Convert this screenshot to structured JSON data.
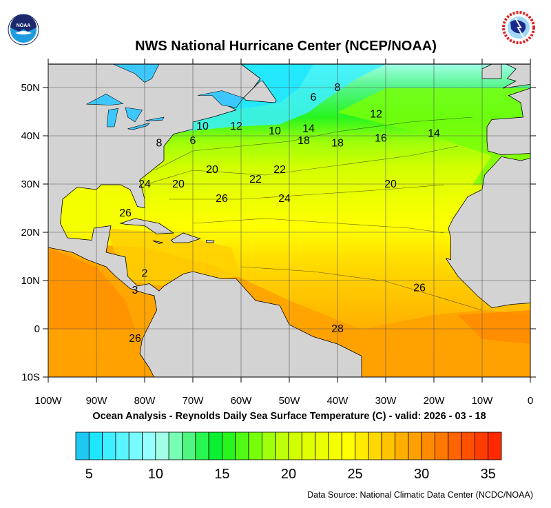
{
  "header": {
    "title": "NWS National Hurricane Center (NCEP/NOAA)",
    "left_logo": {
      "name": "noaa-logo",
      "text": "NOAA"
    },
    "right_logo": {
      "name": "nws-logo",
      "text": "NATIONAL WEATHER SERVICE"
    }
  },
  "map": {
    "lon_labels": [
      "100W",
      "90W",
      "80W",
      "70W",
      "60W",
      "50W",
      "40W",
      "30W",
      "20W",
      "10W",
      "0"
    ],
    "lat_labels": [
      "50N",
      "40N",
      "30N",
      "20N",
      "10N",
      "0",
      "10S"
    ],
    "land_color": "#d3d3d3",
    "contour_labels": [
      "6",
      "8",
      "12",
      "14",
      "10",
      "12",
      "10",
      "14",
      "16",
      "8",
      "6",
      "18",
      "18",
      "20",
      "22",
      "22",
      "24",
      "20",
      "20",
      "26",
      "24",
      "26",
      "2",
      "3",
      "26",
      "26",
      "28"
    ]
  },
  "subtitle": "Ocean Analysis - Reynolds Daily Sea Surface Temperature (C) - valid: 2026 - 03 - 18",
  "colorbar": {
    "min": 4,
    "max": 36,
    "tick_labels": [
      "5",
      "10",
      "15",
      "20",
      "25",
      "30",
      "35"
    ],
    "colors": [
      "#1ec8f0",
      "#1ee6ff",
      "#3cf0ff",
      "#5af5ff",
      "#78faff",
      "#96ffff",
      "#a0ffe6",
      "#78ffb4",
      "#50f582",
      "#28f550",
      "#0af032",
      "#28f51e",
      "#50fa14",
      "#78ff0a",
      "#a0ff0a",
      "#beff0a",
      "#d2ff00",
      "#e1ff00",
      "#ebff00",
      "#f5ff00",
      "#ffff00",
      "#ffeb00",
      "#ffd700",
      "#ffc300",
      "#ffaf00",
      "#ffa000",
      "#ff8c00",
      "#ff7800",
      "#ff6400",
      "#ff5000",
      "#ff3c00",
      "#ff2800"
    ]
  },
  "footer": {
    "source": "Data Source: National Climatic Data Center (NCDC/NOAA)"
  }
}
